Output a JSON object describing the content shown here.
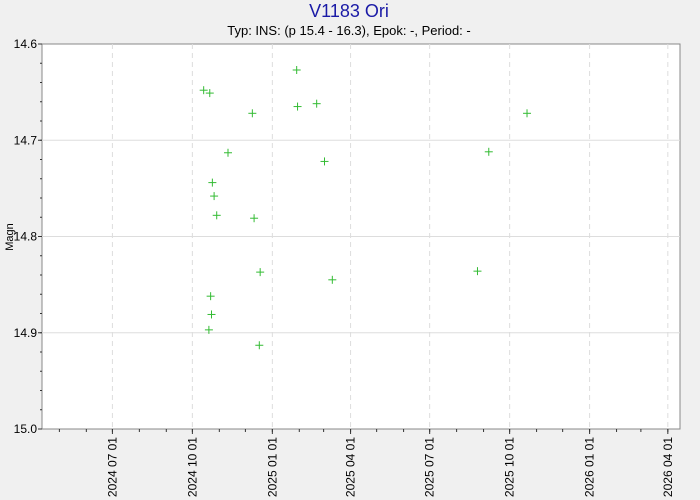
{
  "chart_data": {
    "type": "scatter",
    "title": "V1183 Ori",
    "subtitle": "Typ: INS: (p 15.4 - 16.3), Epok: -, Period: -",
    "ylabel": "Magn",
    "xlabel": "",
    "ylim": [
      14.6,
      15.0
    ],
    "y_inverted": true,
    "xlim": [
      "2024-04-11",
      "2026-04-15"
    ],
    "y_ticks": [
      "14.6",
      "14.7",
      "14.8",
      "14.9",
      "15.0"
    ],
    "x_ticks": [
      "2024 07 01",
      "2024 10 01",
      "2025 01 01",
      "2025 04 01",
      "2025 07 01",
      "2025 10 01",
      "2026 01 01",
      "2026 04 01"
    ],
    "grid": true,
    "marker": "+",
    "marker_color": "#33bb33",
    "background": "#ffffff",
    "points": [
      {
        "x": "2024-10-14",
        "y": 14.648
      },
      {
        "x": "2024-10-21",
        "y": 14.651
      },
      {
        "x": "2024-10-22",
        "y": 14.862
      },
      {
        "x": "2024-10-23",
        "y": 14.881
      },
      {
        "x": "2024-10-20",
        "y": 14.897
      },
      {
        "x": "2024-10-24",
        "y": 14.744
      },
      {
        "x": "2024-10-26",
        "y": 14.758
      },
      {
        "x": "2024-10-29",
        "y": 14.778
      },
      {
        "x": "2024-11-11",
        "y": 14.713
      },
      {
        "x": "2024-12-09",
        "y": 14.672
      },
      {
        "x": "2024-12-11",
        "y": 14.781
      },
      {
        "x": "2024-12-18",
        "y": 14.837
      },
      {
        "x": "2024-12-17",
        "y": 14.913
      },
      {
        "x": "2025-01-29",
        "y": 14.627
      },
      {
        "x": "2025-01-30",
        "y": 14.665
      },
      {
        "x": "2025-02-21",
        "y": 14.662
      },
      {
        "x": "2025-03-02",
        "y": 14.722
      },
      {
        "x": "2025-03-11",
        "y": 14.845
      },
      {
        "x": "2025-08-25",
        "y": 14.836
      },
      {
        "x": "2025-09-07",
        "y": 14.712
      },
      {
        "x": "2025-10-21",
        "y": 14.672
      }
    ]
  }
}
